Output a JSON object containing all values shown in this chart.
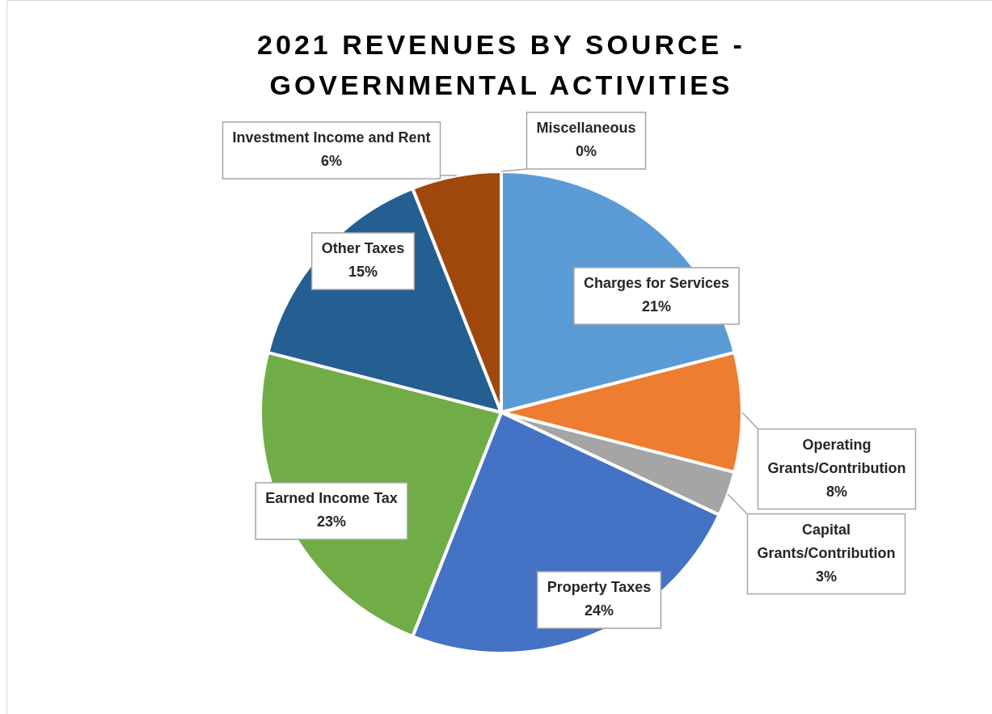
{
  "chart_data": {
    "type": "pie",
    "title": "2021 REVENUES BY SOURCE - GOVERNMENTAL ACTIVITIES",
    "categories": [
      "Charges for Services",
      "Operating Grants/Contribution",
      "Capital Grants/Contribution",
      "Property Taxes",
      "Earned Income Tax",
      "Other Taxes",
      "Investment Income and Rent",
      "Miscellaneous"
    ],
    "values": [
      21,
      8,
      3,
      24,
      23,
      15,
      6,
      0
    ],
    "value_labels": [
      "21%",
      "8%",
      "3%",
      "24%",
      "23%",
      "15%",
      "6%",
      "0%"
    ],
    "colors": [
      "#5b9bd5",
      "#ed7d31",
      "#a5a5a5",
      "#4472c4",
      "#70ad47",
      "#255e91",
      "#9e480e",
      "#636363"
    ],
    "legend": false
  }
}
